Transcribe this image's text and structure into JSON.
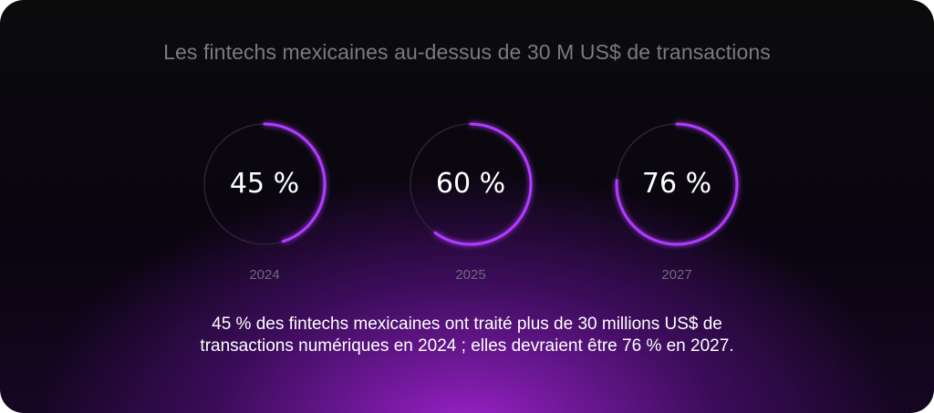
{
  "chart_data": {
    "type": "gauge",
    "title": "Les fintechs mexicaines au-dessus de 30 M US$ de transactions",
    "items": [
      {
        "year": "2024",
        "value": 45,
        "label": "45 %"
      },
      {
        "year": "2025",
        "value": 60,
        "label": "60 %"
      },
      {
        "year": "2027",
        "value": 76,
        "label": "76 %"
      }
    ],
    "colors": {
      "arc": "#b03bff",
      "track": "#2a2233"
    }
  },
  "caption": {
    "line1": "45 % des fintechs mexicaines ont traité plus de 30 millions US$ de",
    "line2": "transactions numériques en 2024 ; elles devraient être 76 % en 2027."
  }
}
